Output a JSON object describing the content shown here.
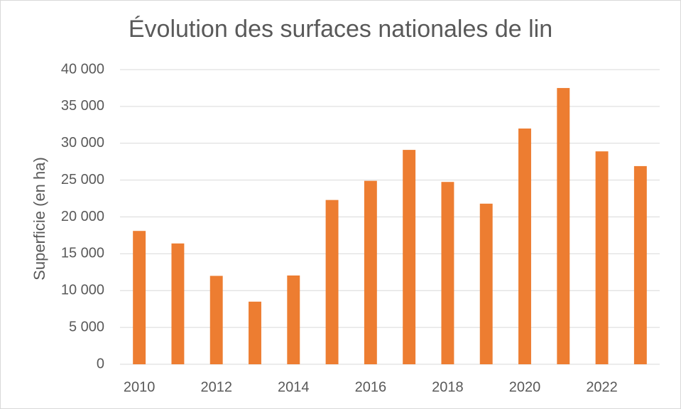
{
  "chart_data": {
    "type": "bar",
    "title": "Évolution des surfaces nationales de lin",
    "ylabel": "Superficie (en ha)",
    "xlabel": "",
    "categories": [
      "2010",
      "2011",
      "2012",
      "2013",
      "2014",
      "2015",
      "2016",
      "2017",
      "2018",
      "2019",
      "2020",
      "2021",
      "2022",
      "2023"
    ],
    "x_tick_labels": [
      "2010",
      "",
      "2012",
      "",
      "2014",
      "",
      "2016",
      "",
      "2018",
      "",
      "2020",
      "",
      "2022",
      ""
    ],
    "values": [
      18100,
      16400,
      12000,
      8500,
      12050,
      22300,
      24900,
      29100,
      24750,
      21800,
      32000,
      37500,
      28900,
      26900
    ],
    "ylim": [
      0,
      40000
    ],
    "y_ticks": [
      0,
      5000,
      10000,
      15000,
      20000,
      25000,
      30000,
      35000,
      40000
    ],
    "y_tick_labels": [
      "0",
      "5 000",
      "10 000",
      "15 000",
      "20 000",
      "25 000",
      "30 000",
      "35 000",
      "40 000"
    ],
    "bar_color": "#ED7D31",
    "grid": true,
    "legend": "none"
  }
}
